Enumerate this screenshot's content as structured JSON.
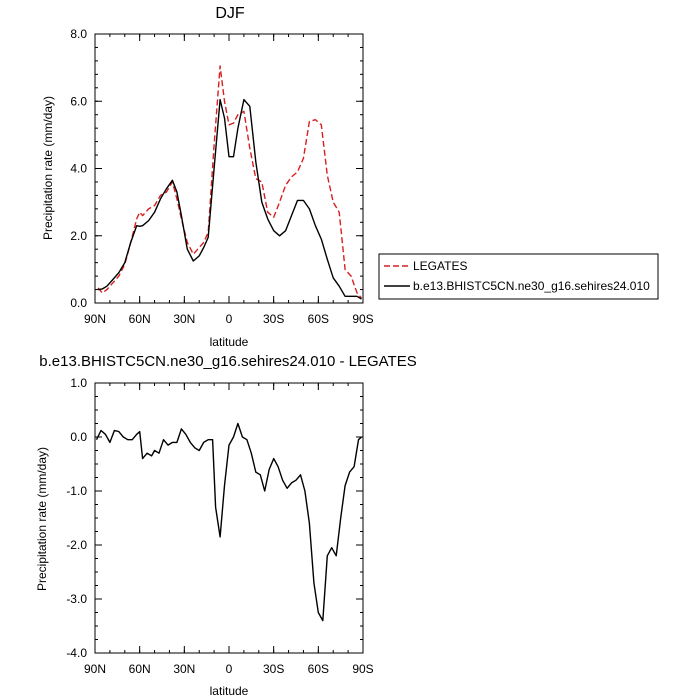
{
  "chart_data": [
    {
      "type": "line",
      "title": "DJF",
      "xlabel": "latitude",
      "ylabel": "Precipitation rate (mm/day)",
      "xlim": [
        90,
        -90
      ],
      "ylim": [
        0,
        8
      ],
      "x_ticks": [
        90,
        60,
        30,
        0,
        -30,
        -60,
        -90
      ],
      "x_tick_labels": [
        "90N",
        "60N",
        "30N",
        "0",
        "30S",
        "60S",
        "90S"
      ],
      "y_ticks": [
        0,
        2,
        4,
        6,
        8
      ],
      "y_tick_labels": [
        "0.0",
        "2.0",
        "4.0",
        "6.0",
        "8.0"
      ],
      "legend_position": "right",
      "series": [
        {
          "name": "LEGATES",
          "color": "#d62020",
          "dash": "dashed",
          "x": [
            88,
            85,
            82,
            78,
            74,
            70,
            66,
            62,
            60,
            58,
            54,
            50,
            46,
            42,
            38,
            35,
            32,
            28,
            24,
            20,
            17,
            14,
            10,
            6,
            3,
            0,
            -3,
            -6,
            -10,
            -14,
            -18,
            -22,
            -26,
            -30,
            -34,
            -38,
            -42,
            -46,
            -50,
            -54,
            -58,
            -62,
            -66,
            -70,
            -74,
            -78,
            -82,
            -86,
            -89
          ],
          "values": [
            0.45,
            0.3,
            0.4,
            0.6,
            0.8,
            1.15,
            1.8,
            2.5,
            2.7,
            2.6,
            2.8,
            2.9,
            3.2,
            3.3,
            3.6,
            3.1,
            2.5,
            1.8,
            1.45,
            1.65,
            1.8,
            2.1,
            4.7,
            7.05,
            6.0,
            5.3,
            5.35,
            5.6,
            5.7,
            4.6,
            3.7,
            3.6,
            2.7,
            2.55,
            3.0,
            3.5,
            3.75,
            3.9,
            4.3,
            5.4,
            5.45,
            5.3,
            3.8,
            3.0,
            2.7,
            1.0,
            0.8,
            0.3,
            0.15
          ]
        },
        {
          "name": "b.e13.BHISTC5CN.ne30_g16.sehires24.010",
          "color": "#000000",
          "dash": "solid",
          "x": [
            88,
            85,
            82,
            78,
            74,
            70,
            66,
            62,
            60,
            58,
            54,
            50,
            46,
            42,
            38,
            35,
            32,
            28,
            24,
            20,
            17,
            14,
            10,
            6,
            3,
            0,
            -3,
            -6,
            -10,
            -14,
            -18,
            -22,
            -26,
            -30,
            -34,
            -38,
            -42,
            -46,
            -50,
            -54,
            -58,
            -62,
            -66,
            -70,
            -74,
            -78,
            -82,
            -86,
            -89
          ],
          "values": [
            0.4,
            0.42,
            0.5,
            0.7,
            0.9,
            1.2,
            1.8,
            2.3,
            2.28,
            2.3,
            2.45,
            2.7,
            3.1,
            3.4,
            3.65,
            3.3,
            2.6,
            1.6,
            1.25,
            1.4,
            1.65,
            1.95,
            4.0,
            6.05,
            5.5,
            4.35,
            4.35,
            5.2,
            6.05,
            5.85,
            4.2,
            3.0,
            2.5,
            2.15,
            2.0,
            2.15,
            2.6,
            3.05,
            3.05,
            2.8,
            2.3,
            1.9,
            1.3,
            0.75,
            0.5,
            0.2,
            0.2,
            0.2,
            0.12
          ]
        }
      ]
    },
    {
      "type": "line",
      "title": "b.e13.BHISTC5CN.ne30_g16.sehires24.010 - LEGATES",
      "xlabel": "latitude",
      "ylabel": "Precipitation rate (mm/day)",
      "xlim": [
        90,
        -90
      ],
      "ylim": [
        -4,
        1
      ],
      "x_ticks": [
        90,
        60,
        30,
        0,
        -30,
        -60,
        -90
      ],
      "x_tick_labels": [
        "90N",
        "60N",
        "30N",
        "0",
        "30S",
        "60S",
        "90S"
      ],
      "y_ticks": [
        1,
        0,
        -1,
        -2,
        -3,
        -4
      ],
      "y_tick_labels": [
        "1.0",
        "0.0",
        "-1.0",
        "-2.0",
        "-3.0",
        "-4.0"
      ],
      "series": [
        {
          "color": "#000000",
          "dash": "solid",
          "x": [
            89,
            86,
            83,
            80,
            77,
            74,
            71,
            68,
            65,
            62,
            60,
            58,
            55,
            52,
            50,
            47,
            44,
            41,
            38,
            35,
            32,
            29,
            26,
            23,
            20,
            17,
            14,
            11,
            9,
            6,
            3,
            0,
            -3,
            -6,
            -9,
            -12,
            -15,
            -18,
            -21,
            -24,
            -27,
            -30,
            -33,
            -36,
            -39,
            -42,
            -45,
            -48,
            -51,
            -54,
            -57,
            -60,
            -63,
            -66,
            -69,
            -72,
            -75,
            -78,
            -81,
            -84,
            -87,
            -89
          ],
          "values": [
            -0.05,
            0.12,
            0.05,
            -0.1,
            0.12,
            0.1,
            0.0,
            -0.05,
            -0.05,
            0.05,
            0.1,
            -0.4,
            -0.3,
            -0.35,
            -0.25,
            -0.3,
            -0.05,
            -0.15,
            -0.1,
            -0.1,
            0.15,
            0.05,
            -0.1,
            -0.2,
            -0.25,
            -0.1,
            -0.05,
            -0.05,
            -1.3,
            -1.85,
            -0.9,
            -0.15,
            0.0,
            0.25,
            0.0,
            -0.05,
            -0.3,
            -0.65,
            -0.7,
            -1.0,
            -0.6,
            -0.4,
            -0.55,
            -0.8,
            -0.95,
            -0.85,
            -0.8,
            -0.7,
            -1.0,
            -1.6,
            -2.7,
            -3.25,
            -3.4,
            -2.2,
            -2.05,
            -2.2,
            -1.5,
            -0.9,
            -0.65,
            -0.55,
            -0.05,
            0.0
          ]
        }
      ]
    }
  ]
}
